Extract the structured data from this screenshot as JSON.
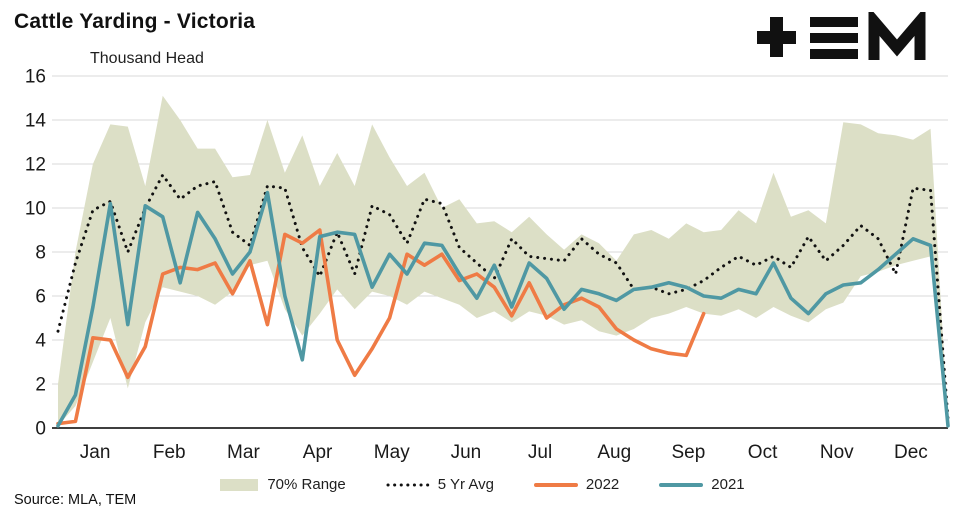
{
  "header": {
    "title": "Cattle Yarding - Victoria",
    "units_label": "Thousand Head",
    "logo_name": "TEM"
  },
  "footer": {
    "source": "Source: MLA, TEM"
  },
  "chart_data": {
    "type": "line",
    "title": "Cattle Yarding - Victoria",
    "ylabel": "Thousand Head",
    "xlabel": "",
    "ylim": [
      0,
      16
    ],
    "y_ticks": [
      0,
      2,
      4,
      6,
      8,
      10,
      12,
      14,
      16
    ],
    "x_tick_labels": [
      "Jan",
      "Feb",
      "Mar",
      "Apr",
      "May",
      "Jun",
      "Jul",
      "Aug",
      "Sep",
      "Oct",
      "Nov",
      "Dec"
    ],
    "x_resolution": "weekly, 52 points per year",
    "grid": "horizontal",
    "legend_position": "bottom",
    "band": {
      "name": "70% Range",
      "color": "#dcdfc6",
      "upper": [
        2.0,
        8.0,
        12.0,
        13.8,
        13.7,
        11.0,
        15.1,
        14.0,
        12.7,
        12.7,
        11.4,
        11.5,
        14.0,
        11.6,
        13.3,
        11.0,
        12.5,
        11.0,
        13.8,
        12.3,
        11.0,
        11.6,
        10.0,
        10.4,
        9.3,
        9.4,
        8.9,
        9.6,
        8.8,
        8.1,
        8.8,
        8.4,
        7.6,
        8.8,
        9.0,
        8.6,
        9.3,
        8.9,
        9.0,
        9.9,
        9.3,
        11.6,
        9.6,
        9.9,
        9.3,
        13.9,
        13.8,
        13.4,
        13.3,
        13.1,
        13.6,
        0.3
      ],
      "lower": [
        0.1,
        1.0,
        3.0,
        5.0,
        1.8,
        4.8,
        6.4,
        6.2,
        6.0,
        5.6,
        6.2,
        7.4,
        7.6,
        5.4,
        4.2,
        5.2,
        6.3,
        5.4,
        6.2,
        6.0,
        5.6,
        6.2,
        5.9,
        5.6,
        5.0,
        5.3,
        4.8,
        5.3,
        5.1,
        4.7,
        4.9,
        4.4,
        4.2,
        4.5,
        5.0,
        5.2,
        5.5,
        5.2,
        5.1,
        5.4,
        5.0,
        5.5,
        5.1,
        4.8,
        5.4,
        5.7,
        6.9,
        7.1,
        7.4,
        7.6,
        7.8,
        0.1
      ]
    },
    "series": [
      {
        "name": "5 Yr Avg",
        "style": "dotted",
        "color": "#111111",
        "values": [
          4.4,
          7.5,
          9.9,
          10.3,
          8.0,
          10.0,
          11.5,
          10.4,
          11.0,
          11.2,
          8.9,
          8.3,
          11.0,
          10.9,
          8.2,
          6.9,
          8.9,
          7.0,
          10.1,
          9.7,
          8.4,
          10.4,
          10.2,
          8.2,
          7.5,
          6.8,
          8.6,
          7.8,
          7.7,
          7.6,
          8.6,
          7.9,
          7.5,
          6.3,
          6.4,
          6.1,
          6.3,
          6.7,
          7.3,
          7.8,
          7.4,
          7.8,
          7.3,
          8.7,
          7.6,
          8.3,
          9.2,
          8.6,
          7.0,
          10.9,
          10.8,
          0.4
        ]
      },
      {
        "name": "2022",
        "style": "solid",
        "color": "#ef7b45",
        "values": [
          0.2,
          0.3,
          4.1,
          4.0,
          2.3,
          3.7,
          7.0,
          7.3,
          7.2,
          7.5,
          6.1,
          7.6,
          4.7,
          8.8,
          8.4,
          9.0,
          4.0,
          2.4,
          3.6,
          5.0,
          7.9,
          7.4,
          7.9,
          6.7,
          7.0,
          6.4,
          5.1,
          6.6,
          5.0,
          5.6,
          5.9,
          5.5,
          4.5,
          4.0,
          3.6,
          3.4,
          3.3,
          5.2,
          null,
          null,
          null,
          null,
          null,
          null,
          null,
          null,
          null,
          null,
          null,
          null,
          null,
          null
        ]
      },
      {
        "name": "2021",
        "style": "solid",
        "color": "#4f98a3",
        "values": [
          0.1,
          1.5,
          5.5,
          10.2,
          4.7,
          10.1,
          9.6,
          6.6,
          9.8,
          8.6,
          7.0,
          8.0,
          10.7,
          6.0,
          3.1,
          8.7,
          8.9,
          8.8,
          6.4,
          7.9,
          7.0,
          8.4,
          8.3,
          7.0,
          5.9,
          7.4,
          5.5,
          7.5,
          6.8,
          5.4,
          6.3,
          6.1,
          5.8,
          6.3,
          6.4,
          6.6,
          6.4,
          6.0,
          5.9,
          6.3,
          6.1,
          7.5,
          5.9,
          5.2,
          6.1,
          6.5,
          6.6,
          7.2,
          7.9,
          8.6,
          8.3,
          0.1
        ]
      }
    ]
  }
}
